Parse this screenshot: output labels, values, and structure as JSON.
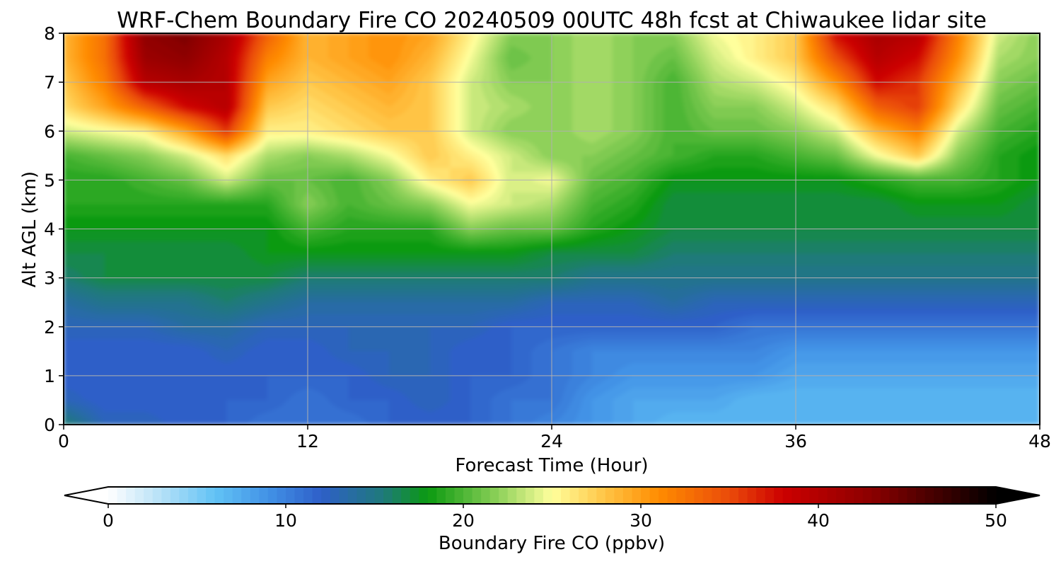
{
  "chart_data": {
    "type": "heatmap",
    "title": "WRF-Chem Boundary Fire CO  20240509 00UTC 48h fcst at Chiwaukee lidar site",
    "xlabel": "Forecast Time (Hour)",
    "ylabel": "Alt AGL (km)",
    "xlim": [
      0,
      48
    ],
    "ylim": [
      0,
      8
    ],
    "x_ticks": [
      "0",
      "12",
      "24",
      "36",
      "48"
    ],
    "y_ticks": [
      "0",
      "1",
      "2",
      "3",
      "4",
      "5",
      "6",
      "7",
      "8"
    ],
    "grid": true,
    "x": [
      0,
      2,
      4,
      6,
      8,
      10,
      12,
      14,
      16,
      18,
      20,
      22,
      24,
      26,
      28,
      30,
      32,
      34,
      36,
      38,
      40,
      42,
      44,
      46,
      48
    ],
    "y": [
      0,
      0.5,
      1,
      1.5,
      2,
      2.5,
      3,
      3.5,
      4,
      4.5,
      5,
      5.5,
      6,
      6.5,
      7,
      7.5,
      8
    ],
    "z_units": "ppbv",
    "z": [
      [
        16,
        13,
        13,
        12,
        12,
        11,
        11,
        11,
        12,
        12,
        12,
        11,
        10,
        9,
        8,
        7,
        7,
        7,
        7,
        7,
        7,
        7,
        7,
        7,
        7
      ],
      [
        13,
        12,
        12,
        12,
        12,
        12,
        11,
        12,
        12,
        13,
        12,
        11,
        11,
        9,
        8,
        8,
        8,
        7,
        7,
        7,
        7,
        7,
        7,
        7,
        7
      ],
      [
        12,
        12,
        12,
        12,
        12,
        12,
        12,
        12,
        13,
        13,
        12,
        12,
        11,
        10,
        9,
        9,
        9,
        9,
        8,
        8,
        8,
        8,
        8,
        8,
        8
      ],
      [
        12,
        12,
        12,
        12,
        13,
        12,
        12,
        13,
        13,
        13,
        12,
        12,
        11,
        10,
        10,
        10,
        10,
        10,
        9,
        9,
        9,
        9,
        9,
        9,
        9
      ],
      [
        13,
        13,
        13,
        14,
        14,
        13,
        13,
        13,
        13,
        13,
        13,
        12,
        12,
        12,
        12,
        12,
        12,
        11,
        11,
        11,
        11,
        11,
        11,
        11,
        11
      ],
      [
        14,
        15,
        15,
        15,
        16,
        15,
        14,
        14,
        14,
        14,
        14,
        14,
        13,
        13,
        13,
        14,
        13,
        13,
        13,
        13,
        13,
        13,
        13,
        13,
        13
      ],
      [
        16,
        17,
        17,
        17,
        17,
        17,
        16,
        16,
        16,
        16,
        16,
        16,
        16,
        15,
        15,
        15,
        15,
        15,
        15,
        15,
        15,
        15,
        15,
        15,
        15
      ],
      [
        17,
        17,
        17,
        17,
        17,
        18,
        18,
        18,
        18,
        18,
        18,
        18,
        17,
        17,
        17,
        16,
        16,
        16,
        16,
        16,
        16,
        16,
        16,
        16,
        16
      ],
      [
        18,
        18,
        18,
        18,
        18,
        18,
        20,
        19,
        19,
        19,
        22,
        21,
        21,
        19,
        18,
        17,
        17,
        17,
        17,
        17,
        17,
        17,
        17,
        17,
        17
      ],
      [
        19,
        19,
        19,
        19,
        19,
        19,
        22,
        20,
        21,
        22,
        25,
        24,
        23,
        20,
        19,
        17,
        17,
        17,
        17,
        17,
        17,
        18,
        18,
        18,
        17
      ],
      [
        19,
        19,
        20,
        21,
        24,
        21,
        21,
        20,
        22,
        26,
        28,
        24,
        25,
        21,
        20,
        18,
        18,
        18,
        18,
        18,
        19,
        20,
        20,
        19,
        18
      ],
      [
        20,
        21,
        22,
        24,
        27,
        23,
        22,
        23,
        25,
        28,
        26,
        24,
        22,
        22,
        21,
        20,
        19,
        19,
        20,
        21,
        25,
        28,
        22,
        19,
        18
      ],
      [
        24,
        25,
        26,
        30,
        36,
        26,
        26,
        27,
        28,
        28,
        24,
        22,
        22,
        23,
        22,
        20,
        21,
        21,
        22,
        24,
        29,
        32,
        24,
        20,
        19
      ],
      [
        27,
        30,
        34,
        38,
        40,
        28,
        27,
        28,
        29,
        28,
        24,
        23,
        22,
        23,
        22,
        20,
        22,
        22,
        24,
        27,
        34,
        36,
        27,
        21,
        20
      ],
      [
        28,
        32,
        40,
        41,
        40,
        30,
        28,
        29,
        30,
        28,
        24,
        22,
        22,
        23,
        22,
        20,
        23,
        24,
        26,
        31,
        38,
        36,
        29,
        22,
        21
      ],
      [
        29,
        33,
        42,
        43,
        40,
        32,
        29,
        30,
        31,
        29,
        25,
        21,
        22,
        23,
        22,
        21,
        24,
        26,
        28,
        35,
        40,
        38,
        31,
        23,
        22
      ],
      [
        29,
        33,
        43,
        44,
        41,
        34,
        29,
        30,
        31,
        30,
        26,
        22,
        22,
        23,
        22,
        22,
        25,
        26,
        28,
        38,
        41,
        40,
        32,
        24,
        22
      ]
    ],
    "colorbar": {
      "label": "Boundary Fire CO  (ppbv)",
      "ticks": [
        "0",
        "10",
        "20",
        "30",
        "40",
        "50"
      ],
      "range": [
        0,
        50
      ],
      "extend": "both",
      "stops": [
        {
          "v": 0,
          "c": "#ffffff"
        },
        {
          "v": 3,
          "c": "#b5e0f7"
        },
        {
          "v": 6,
          "c": "#62c3f5"
        },
        {
          "v": 9,
          "c": "#4292e6"
        },
        {
          "v": 12,
          "c": "#2e5fc8"
        },
        {
          "v": 15.5,
          "c": "#1f7a7a"
        },
        {
          "v": 18,
          "c": "#0b9a10"
        },
        {
          "v": 22,
          "c": "#8fd15a"
        },
        {
          "v": 25,
          "c": "#ffff9c"
        },
        {
          "v": 28,
          "c": "#ffc445"
        },
        {
          "v": 31,
          "c": "#ff8c00"
        },
        {
          "v": 35,
          "c": "#ea4b0a"
        },
        {
          "v": 38,
          "c": "#cc0000"
        },
        {
          "v": 43,
          "c": "#8b0000"
        },
        {
          "v": 50,
          "c": "#000000"
        }
      ]
    }
  }
}
